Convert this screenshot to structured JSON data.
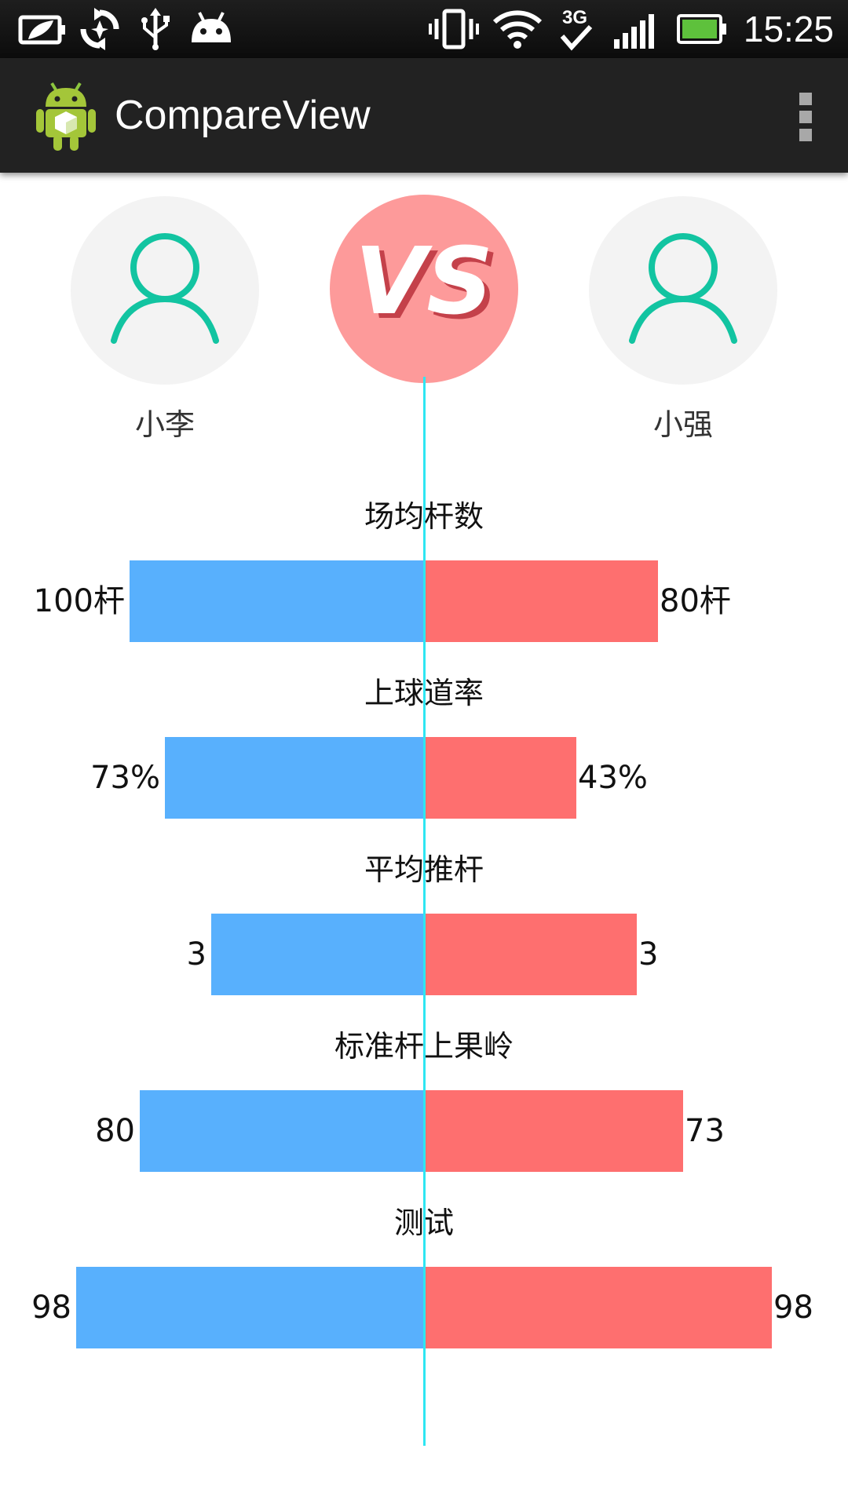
{
  "status_bar": {
    "time": "15:25",
    "icons": [
      "battery-saver-icon",
      "sync-icon",
      "usb-icon",
      "android-debug-icon",
      "vibrate-icon",
      "wifi-icon",
      "3g-icon",
      "signal-icon",
      "battery-icon"
    ]
  },
  "action_bar": {
    "title": "CompareView",
    "app_icon": "android-robot-icon",
    "menu_icon": "overflow-menu-icon"
  },
  "compare": {
    "left_player": {
      "name": "小李",
      "avatar_icon": "user-icon"
    },
    "right_player": {
      "name": "小强",
      "avatar_icon": "user-icon"
    },
    "vs_label": "VS",
    "colors": {
      "left": "#58b0fd",
      "right": "#fe6f6f",
      "center_line": "#2ee6f2",
      "vs_bg": "#fd9a9a",
      "avatar_stroke": "#12c4a1"
    }
  },
  "chart_data": {
    "type": "bar",
    "orientation": "diverging-horizontal",
    "series": [
      {
        "name": "小李",
        "side": "left"
      },
      {
        "name": "小强",
        "side": "right"
      }
    ],
    "rows": [
      {
        "title": "场均杆数",
        "left_label": "100杆",
        "right_label": "80杆",
        "left_fraction": 0.83,
        "right_fraction": 0.66
      },
      {
        "title": "上球道率",
        "left_label": "73%",
        "right_label": "43%",
        "left_fraction": 0.73,
        "right_fraction": 0.43
      },
      {
        "title": "平均推杆",
        "left_label": "3",
        "right_label": "3",
        "left_fraction": 0.6,
        "right_fraction": 0.6
      },
      {
        "title": "标准杆上果岭",
        "left_label": "80",
        "right_label": "73",
        "left_fraction": 0.8,
        "right_fraction": 0.73
      },
      {
        "title": "测试",
        "left_label": "98",
        "right_label": "98",
        "left_fraction": 0.98,
        "right_fraction": 0.98
      }
    ]
  }
}
